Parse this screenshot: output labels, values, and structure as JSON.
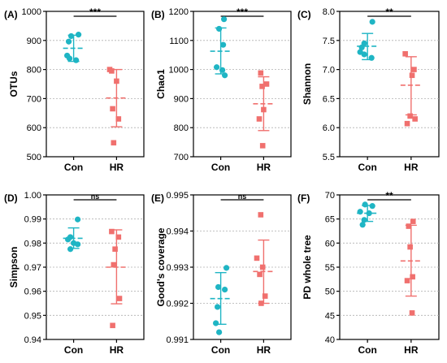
{
  "colors": {
    "con": "#1fb5c4",
    "hr": "#f0706e",
    "axis": "#000000",
    "grid": "#b0b0b0",
    "sig_line": "#000000"
  },
  "chart_data": [
    {
      "type": "scatter",
      "panel_label": "(A)",
      "ylabel": "OTUs",
      "ylim": [
        500,
        1000
      ],
      "yticks": [
        500,
        600,
        700,
        800,
        900,
        1000
      ],
      "categories": [
        "Con",
        "HR"
      ],
      "significance": "***",
      "grid": true,
      "series": [
        {
          "category": "Con",
          "values": [
            920,
            915,
            896,
            848,
            838,
            832
          ],
          "mean": 873,
          "sd_low": 828,
          "sd_high": 918
        },
        {
          "category": "HR",
          "values": [
            800,
            795,
            760,
            665,
            630,
            548
          ],
          "mean": 702,
          "sd_low": 603,
          "sd_high": 800
        }
      ]
    },
    {
      "type": "scatter",
      "panel_label": "(B)",
      "ylabel": "Chao1",
      "ylim": [
        700,
        1200
      ],
      "yticks": [
        700,
        800,
        900,
        1000,
        1100,
        1200
      ],
      "categories": [
        "Con",
        "HR"
      ],
      "significance": "***",
      "grid": true,
      "series": [
        {
          "category": "Con",
          "values": [
            1173,
            1140,
            1085,
            1008,
            998,
            980
          ],
          "mean": 1063,
          "sd_low": 985,
          "sd_high": 1143
        },
        {
          "category": "HR",
          "values": [
            988,
            950,
            942,
            862,
            830,
            738
          ],
          "mean": 882,
          "sd_low": 790,
          "sd_high": 975
        }
      ]
    },
    {
      "type": "scatter",
      "panel_label": "(C)",
      "ylabel": "Shannon",
      "ylim": [
        5.5,
        8.0
      ],
      "yticks": [
        5.5,
        6.0,
        6.5,
        7.0,
        7.5,
        8.0
      ],
      "categories": [
        "Con",
        "HR"
      ],
      "significance": "**",
      "grid": true,
      "series": [
        {
          "category": "Con",
          "values": [
            7.82,
            7.45,
            7.38,
            7.3,
            7.26,
            7.2
          ],
          "mean": 7.4,
          "sd_low": 7.17,
          "sd_high": 7.62
        },
        {
          "category": "HR",
          "values": [
            7.27,
            7.0,
            6.9,
            6.2,
            6.15,
            6.07
          ],
          "mean": 6.73,
          "sd_low": 6.22,
          "sd_high": 7.22
        }
      ]
    },
    {
      "type": "scatter",
      "panel_label": "(D)",
      "ylabel": "Simpson",
      "ylim": [
        0.94,
        1.0
      ],
      "yticks": [
        0.94,
        0.95,
        0.96,
        0.97,
        0.98,
        0.99,
        1.0
      ],
      "categories": [
        "Con",
        "HR"
      ],
      "significance": "ns",
      "grid": true,
      "series": [
        {
          "category": "Con",
          "values": [
            0.9898,
            0.9825,
            0.9815,
            0.98,
            0.9795,
            0.9775
          ],
          "mean": 0.982,
          "sd_low": 0.9778,
          "sd_high": 0.9863
        },
        {
          "category": "HR",
          "values": [
            0.9848,
            0.9825,
            0.9775,
            0.971,
            0.957,
            0.9458
          ],
          "mean": 0.97,
          "sd_low": 0.9548,
          "sd_high": 0.9855
        }
      ]
    },
    {
      "type": "scatter",
      "panel_label": "(E)",
      "ylabel": "Good's coverage",
      "ylim": [
        0.991,
        0.995
      ],
      "yticks": [
        0.991,
        0.992,
        0.993,
        0.994,
        0.995
      ],
      "categories": [
        "Con",
        "HR"
      ],
      "significance": "ns",
      "grid": true,
      "series": [
        {
          "category": "Con",
          "values": [
            0.99298,
            0.99245,
            0.99238,
            0.9919,
            0.99145,
            0.9912
          ],
          "mean": 0.99213,
          "sd_low": 0.99142,
          "sd_high": 0.99285
        },
        {
          "category": "HR",
          "values": [
            0.99445,
            0.99325,
            0.993,
            0.9928,
            0.9922,
            0.992
          ],
          "mean": 0.99288,
          "sd_low": 0.992,
          "sd_high": 0.99375
        }
      ]
    },
    {
      "type": "scatter",
      "panel_label": "(F)",
      "ylabel": "PD whole tree",
      "ylim": [
        40,
        70
      ],
      "yticks": [
        40,
        45,
        50,
        55,
        60,
        65,
        70
      ],
      "categories": [
        "Con",
        "HR"
      ],
      "significance": "**",
      "grid": true,
      "series": [
        {
          "category": "Con",
          "values": [
            68.0,
            67.7,
            66.5,
            66.2,
            64.8,
            63.8
          ],
          "mean": 66.2,
          "sd_low": 64.5,
          "sd_high": 67.8
        },
        {
          "category": "HR",
          "values": [
            64.5,
            63.5,
            59.2,
            53.0,
            52.2,
            45.5
          ],
          "mean": 56.3,
          "sd_low": 49.0,
          "sd_high": 63.7
        }
      ]
    }
  ]
}
